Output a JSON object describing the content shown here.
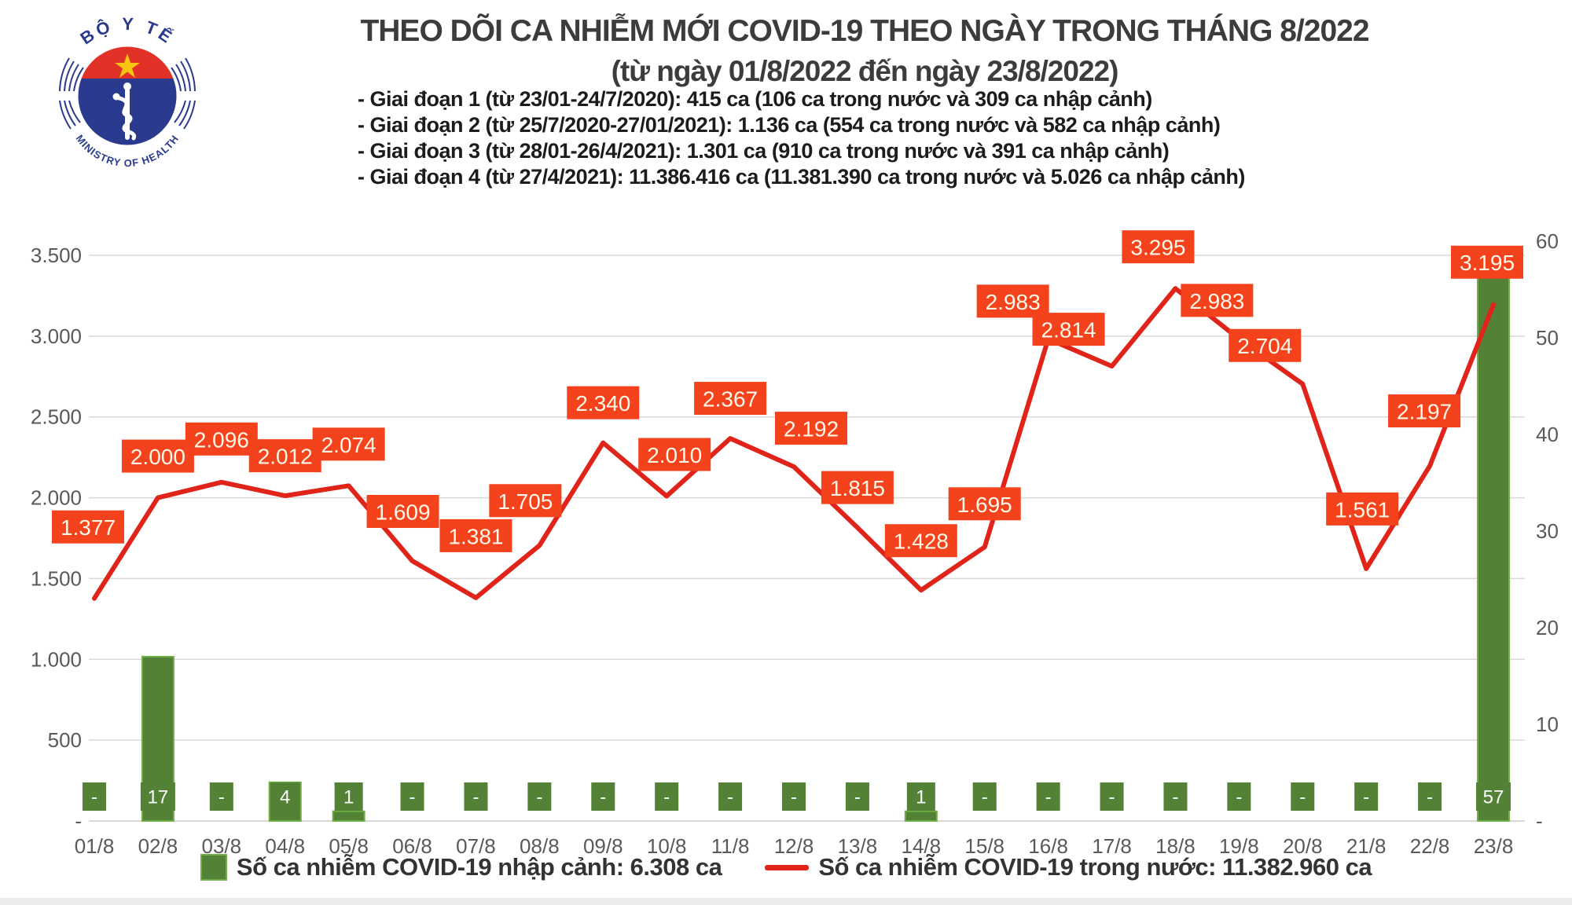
{
  "logo": {
    "line1": "BỘ Y TẾ",
    "line2": "MINISTRY OF HEALTH"
  },
  "title": "THEO DÕI CA NHIỄM MỚI COVID-19 THEO NGÀY TRONG THÁNG 8/2022",
  "subtitle": "(từ ngày 01/8/2022 đến ngày 23/8/2022)",
  "notes": [
    "- Giai đoạn 1 (từ 23/01-24/7/2020): 415 ca (106 ca trong nước và 309 ca nhập cảnh)",
    "- Giai đoạn 2 (từ 25/7/2020-27/01/2021): 1.136 ca (554 ca trong nước và 582 ca nhập cảnh)",
    "- Giai đoạn 3 (từ 28/01-26/4/2021): 1.301 ca (910 ca trong nước và 391 ca nhập cảnh)",
    "- Giai đoạn 4 (từ 27/4/2021): 11.386.416 ca (11.381.390 ca trong nước và 5.026 ca nhập cảnh)"
  ],
  "chart_data": {
    "type": "line+bar",
    "categories": [
      "01/8",
      "02/8",
      "03/8",
      "04/8",
      "05/8",
      "06/8",
      "07/8",
      "08/8",
      "09/8",
      "10/8",
      "11/8",
      "12/8",
      "13/8",
      "14/8",
      "15/8",
      "16/8",
      "17/8",
      "18/8",
      "19/8",
      "20/8",
      "21/8",
      "22/8",
      "23/8"
    ],
    "series": [
      {
        "name": "Số ca nhiễm COVID-19 nhập cảnh",
        "type": "bar",
        "axis": "right",
        "color": "#538135",
        "edge_color": "#6fae44",
        "values": [
          0,
          17,
          0,
          4,
          1,
          0,
          0,
          0,
          0,
          0,
          0,
          0,
          0,
          1,
          0,
          0,
          0,
          0,
          0,
          0,
          0,
          0,
          57
        ],
        "labels": [
          "-",
          "17",
          "-",
          "4",
          "1",
          "-",
          "-",
          "-",
          "-",
          "-",
          "-",
          "-",
          "-",
          "1",
          "-",
          "-",
          "-",
          "-",
          "-",
          "-",
          "-",
          "-",
          "57"
        ]
      },
      {
        "name": "Số ca nhiễm COVID-19 trong nước",
        "type": "line",
        "axis": "left",
        "color": "#e0241a",
        "label_box_color": "#f4421c",
        "values": [
          1377,
          2000,
          2096,
          2012,
          2074,
          1609,
          1381,
          1705,
          2340,
          2010,
          2367,
          2192,
          1815,
          1428,
          1695,
          2983,
          2814,
          3295,
          2983,
          2704,
          1561,
          2197,
          3195
        ],
        "labels": [
          "1.377",
          "2.000",
          "2.096",
          "2.012",
          "2.074",
          "1.609",
          "1.381",
          "1.705",
          "2.340",
          "2.010",
          "2.367",
          "2.192",
          "1.815",
          "1.428",
          "1.695",
          "2.983",
          "2.814",
          "3.295",
          "2.983",
          "2.704",
          "1.561",
          "2.197",
          "3.195"
        ]
      }
    ],
    "left_axis": {
      "min": 0,
      "max": 3500,
      "ticks": [
        "-",
        "500",
        "1.000",
        "1.500",
        "2.000",
        "2.500",
        "3.000",
        "3.500"
      ]
    },
    "right_axis": {
      "min": 0,
      "max": 60,
      "ticks": [
        "-",
        "10",
        "20",
        "30",
        "40",
        "50",
        "60"
      ]
    },
    "grid": true,
    "legend_position": "bottom",
    "legend": [
      {
        "swatch": "bar",
        "label": "Số ca nhiễm COVID-19 nhập cảnh: 6.308 ca"
      },
      {
        "swatch": "line",
        "label": "Số ca nhiễm COVID-19 trong nước: 11.382.960 ca"
      }
    ],
    "grid_color": "#d9d9d9"
  }
}
